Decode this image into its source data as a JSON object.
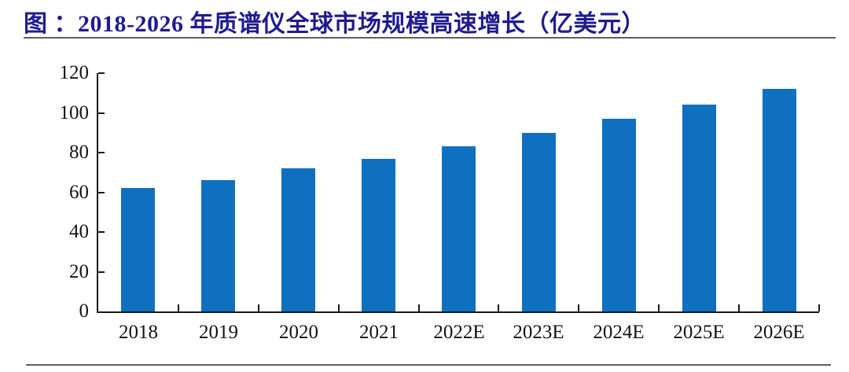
{
  "figure": {
    "title": "图 ：2018-2026 年质谱仪全球市场规模高速增长（亿美元）",
    "title_color": "#1f1c8f",
    "rule_color": "#5e5e5e"
  },
  "chart_data": {
    "type": "bar",
    "title": "2018-2026 年质谱仪全球市场规模高速增长（亿美元）",
    "categories": [
      "2018",
      "2019",
      "2020",
      "2021",
      "2022E",
      "2023E",
      "2024E",
      "2025E",
      "2026E"
    ],
    "values": [
      62,
      66,
      72,
      77,
      83,
      90,
      97,
      104,
      112
    ],
    "xlabel": "",
    "ylabel": "",
    "ylim": [
      0,
      120
    ],
    "yticks": [
      0,
      20,
      40,
      60,
      80,
      100,
      120
    ],
    "bar_color": "#1070C0",
    "axis_color": "#1a1a1a",
    "grid": false,
    "legend": "none"
  }
}
